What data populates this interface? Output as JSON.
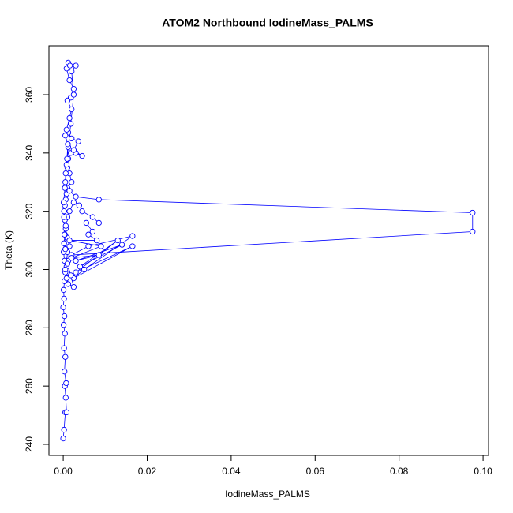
{
  "chart_data": {
    "type": "line",
    "title": "ATOM2 Northbound IodineMass_PALMS",
    "x_label": "IodineMass_PALMS",
    "y_label": "Theta (K)",
    "color": "#0000ff",
    "markers": true,
    "x": [
      0.0,
      0.0002,
      0.0005,
      0.0008,
      0.0006,
      0.0004,
      0.0007,
      0.0003,
      0.0005,
      0.0002,
      0.0004,
      0.0001,
      0.0003,
      0.0,
      0.0002,
      0.0001,
      0.0003,
      0.0005,
      0.0008,
      0.0012,
      0.001,
      0.0015,
      0.0009,
      0.0006,
      0.0004,
      0.0002,
      0.0004,
      0.0006,
      0.0008,
      0.001,
      0.002,
      0.0015,
      0.001,
      0.0012,
      0.0018,
      0.003,
      0.0045,
      0.0025,
      0.0036,
      0.002,
      0.0012,
      0.0008,
      0.0015,
      0.002,
      0.001,
      0.0018,
      0.0025,
      0.0015,
      0.0008,
      0.0012,
      0.0016,
      0.003,
      0.002,
      0.0025,
      0.0018,
      0.0012,
      0.0008,
      0.0005,
      0.0015,
      0.003,
      0.0085,
      0.0975,
      0.0975,
      0.002,
      0.006,
      0.0165,
      0.005,
      0.0025,
      0.0165,
      0.003,
      0.013,
      0.004,
      0.014,
      0.003,
      0.0085,
      0.002,
      0.009,
      0.0015,
      0.008,
      0.006,
      0.007,
      0.0055,
      0.0085,
      0.007,
      0.0045,
      0.0038,
      0.0025,
      0.0015,
      0.001,
      0.0006,
      0.0004,
      0.0002,
      0.0001,
      0.0003,
      0.0005,
      0.0008,
      0.0012,
      0.0025,
      0.0018,
      0.001,
      0.0005,
      0.0003,
      0.0002,
      0.0001,
      0.0004,
      0.0006,
      0.0009,
      0.0011,
      0.0005
    ],
    "values": [
      242,
      245,
      251,
      251,
      256,
      260,
      261,
      265,
      270,
      273,
      278,
      281,
      284,
      287,
      290,
      293,
      296,
      299,
      301,
      303,
      306,
      308,
      311,
      314,
      317,
      320,
      322,
      324,
      326,
      328,
      330,
      333,
      335,
      338,
      340,
      340,
      339,
      341,
      344,
      345,
      347,
      348,
      352,
      355,
      358,
      359,
      362,
      365,
      369,
      371,
      370,
      370,
      368,
      360,
      350,
      342,
      336,
      330,
      327,
      325,
      324,
      319.5,
      313,
      305,
      308,
      311.5,
      300,
      297,
      308,
      299,
      310,
      301,
      308.5,
      303,
      305,
      304,
      308,
      310,
      310,
      312,
      313,
      316,
      316,
      318,
      320,
      322,
      323,
      320,
      318,
      315,
      312,
      309,
      306,
      303,
      300,
      297,
      295,
      294,
      298,
      302,
      307,
      312,
      318,
      323,
      328,
      333,
      338,
      343,
      346
    ],
    "xlim": [
      -0.0034,
      0.1013
    ],
    "ylim": [
      236.2,
      376.8
    ],
    "xticks": [
      {
        "value": 0,
        "label": "0.00"
      },
      {
        "value": 0.02,
        "label": "0.02"
      },
      {
        "value": 0.04,
        "label": "0.04"
      },
      {
        "value": 0.06,
        "label": "0.06"
      },
      {
        "value": 0.08,
        "label": "0.08"
      },
      {
        "value": 0.1,
        "label": "0.10"
      }
    ],
    "yticks": [
      240,
      260,
      280,
      300,
      320,
      340,
      360
    ]
  }
}
